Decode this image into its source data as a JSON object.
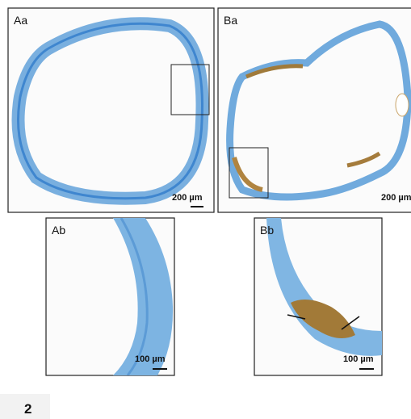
{
  "panels": [
    {
      "label": "Aa",
      "scale_bar": "200 µm"
    },
    {
      "label": "Ba",
      "scale_bar": "200 µm"
    },
    {
      "label": "Ab",
      "scale_bar": "100 µm"
    },
    {
      "label": "Bb",
      "scale_bar": "100 µm"
    }
  ],
  "figure_number": "2"
}
